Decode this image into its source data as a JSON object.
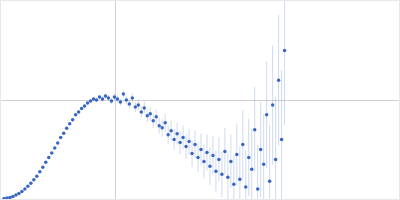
{
  "chart_data": {
    "type": "scatter",
    "x": [
      3,
      6,
      9,
      12,
      15,
      18,
      21,
      24,
      27,
      30,
      33,
      36,
      39,
      42,
      45,
      48,
      51,
      54,
      57,
      60,
      63,
      66,
      69,
      72,
      75,
      78,
      81,
      84,
      87,
      90,
      93,
      96,
      99,
      102,
      105,
      108,
      111,
      114,
      117,
      120,
      123,
      126,
      129,
      132,
      135,
      138,
      141,
      144,
      147,
      150,
      153,
      156,
      159,
      162,
      165,
      168,
      171,
      174,
      177,
      180,
      183,
      186,
      189,
      192,
      195,
      198,
      201,
      204,
      207,
      210,
      213,
      216,
      219,
      222,
      225,
      228,
      231,
      234,
      237,
      240,
      243,
      246,
      249,
      252,
      255,
      258,
      261,
      264,
      267,
      270,
      273,
      276,
      279,
      282,
      285
    ],
    "values": [
      0.5,
      1,
      1.5,
      2.5,
      4,
      5.5,
      7.5,
      10,
      13,
      16,
      19.5,
      23,
      27.5,
      32,
      37,
      42,
      46.5,
      51.5,
      56.5,
      62,
      66.5,
      71.5,
      76,
      80,
      85,
      88,
      91.5,
      94,
      97,
      99,
      101,
      100,
      103,
      101,
      104,
      102,
      99,
      103,
      101,
      98,
      106,
      100,
      96,
      102,
      93,
      95,
      88,
      92,
      84,
      86,
      79,
      83,
      74,
      72,
      77,
      65,
      69,
      60,
      66,
      57,
      62,
      53,
      58,
      46,
      55,
      42,
      50,
      38,
      47,
      33,
      44,
      28,
      40,
      25,
      48,
      22,
      38,
      15,
      45,
      20,
      55,
      12,
      42,
      30,
      70,
      10,
      50,
      35,
      85,
      18,
      95,
      40,
      120,
      60,
      150
    ],
    "errors": [
      0.3,
      0.3,
      0.3,
      0.4,
      0.4,
      0.4,
      0.5,
      0.5,
      0.5,
      0.6,
      0.6,
      0.6,
      0.7,
      0.7,
      0.8,
      0.8,
      0.9,
      0.9,
      1,
      1,
      1,
      1.2,
      1.2,
      1.3,
      1.4,
      1.5,
      1.6,
      1.7,
      1.8,
      2,
      2,
      2.2,
      2.4,
      2.6,
      2.8,
      3,
      3.2,
      3.4,
      3.6,
      3.8,
      4,
      4.3,
      4.6,
      4.9,
      5.2,
      5.5,
      5.8,
      6.1,
      6.4,
      6.8,
      7,
      7.5,
      8,
      8.5,
      9,
      9.5,
      10,
      10.5,
      11,
      11.5,
      12,
      12.5,
      13,
      13.5,
      14,
      15,
      16,
      17,
      18,
      19,
      20,
      21,
      22,
      23,
      24,
      25,
      27,
      29,
      31,
      33,
      35,
      37,
      39,
      41,
      43,
      45,
      48,
      51,
      54,
      57,
      60,
      63,
      66,
      70,
      75
    ],
    "color": "#3a66c4",
    "marker": "circle",
    "xlim": [
      0,
      400
    ],
    "ylim": [
      0,
      200
    ],
    "xticks": [
      115
    ],
    "yticks": [
      100
    ],
    "grid": true,
    "tick_labels": false
  }
}
